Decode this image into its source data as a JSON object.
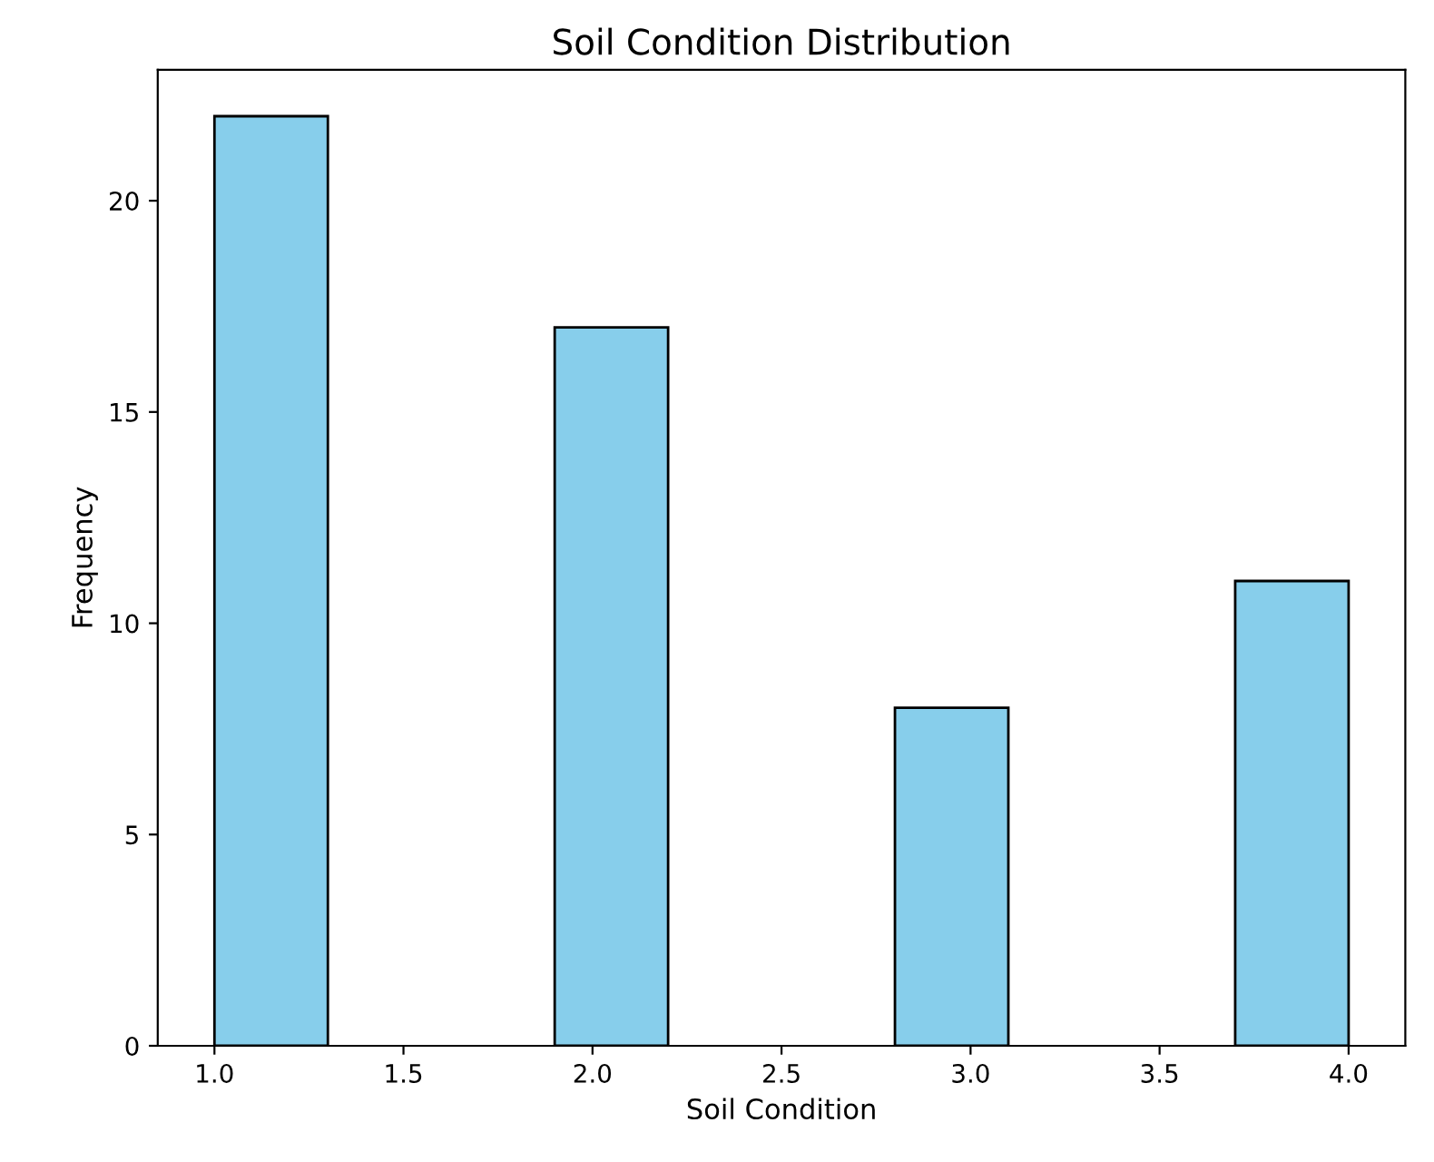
{
  "chart_data": {
    "type": "histogram",
    "title": "Soil Condition Distribution",
    "xlabel": "Soil Condition",
    "ylabel": "Frequency",
    "bins": [
      1.0,
      1.3,
      1.6,
      1.9,
      2.2,
      2.5,
      2.8,
      3.1,
      3.4,
      3.7,
      4.0
    ],
    "values": [
      22,
      0,
      0,
      17,
      0,
      0,
      8,
      0,
      0,
      11
    ],
    "color": "#87ceeb",
    "xlim": [
      0.85,
      4.15
    ],
    "ylim": [
      0,
      23.1
    ],
    "xticks": [
      {
        "value": 1.0,
        "label": "1.0"
      },
      {
        "value": 1.5,
        "label": "1.5"
      },
      {
        "value": 2.0,
        "label": "2.0"
      },
      {
        "value": 2.5,
        "label": "2.5"
      },
      {
        "value": 3.0,
        "label": "3.0"
      },
      {
        "value": 3.5,
        "label": "3.5"
      },
      {
        "value": 4.0,
        "label": "4.0"
      }
    ],
    "yticks": [
      0,
      5,
      10,
      15,
      20
    ],
    "grid": false,
    "legend": false
  }
}
